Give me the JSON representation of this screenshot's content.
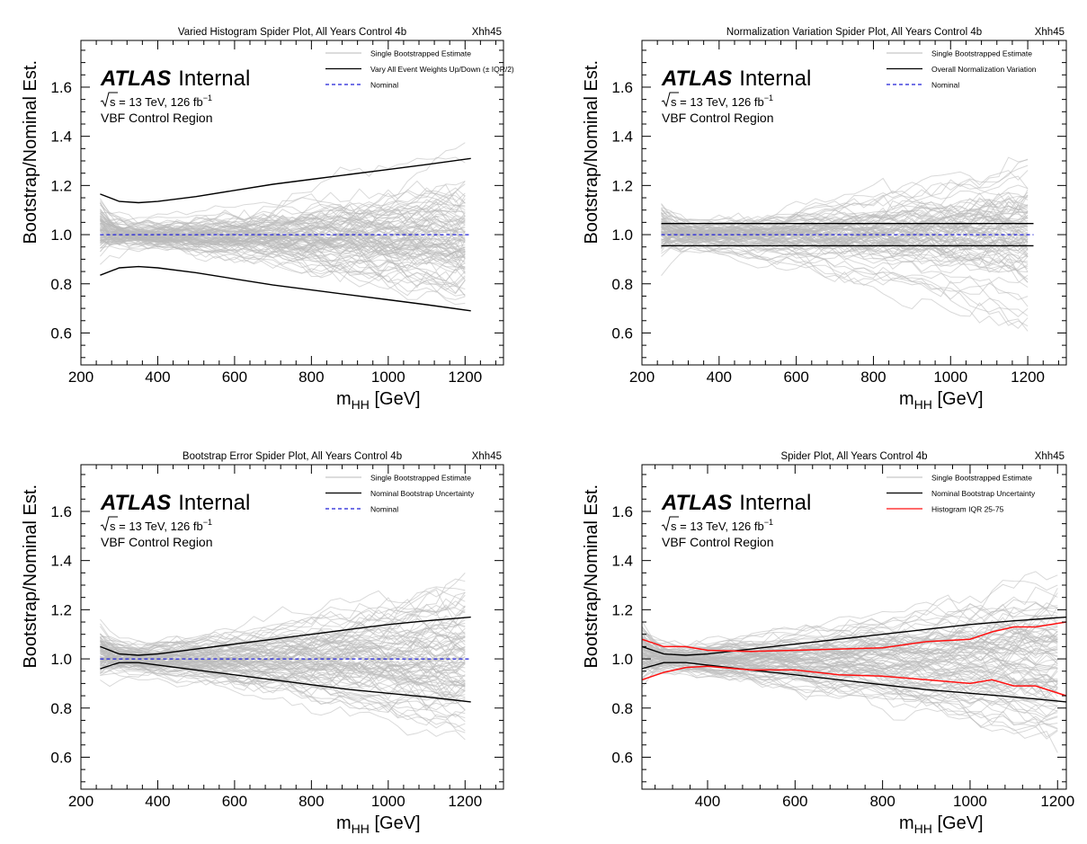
{
  "figure": {
    "atlas_label": "ATLAS",
    "atlas_status": "Internal",
    "sqrt_s": "s",
    "energy_text": " = 13 TeV, 126 fb",
    "lumi_exponent": "−1",
    "region": "VBF Control Region"
  },
  "colors": {
    "bootstrap": "#b9b9b9",
    "variation": "#000000",
    "nominal": "#1f1fd8",
    "iqr": "#ff1010"
  },
  "chart_data": [
    {
      "type": "line",
      "title": "Varied Histogram Spider Plot, All Years Control 4b",
      "tag": "Xhh45",
      "xlabel": "m",
      "xlabel_sub": "HH",
      "xlabel_unit": " [GeV]",
      "ylabel": "Bootstrap/Nominal Est.",
      "xlim": [
        200,
        1300
      ],
      "ylim": [
        0.47,
        1.79
      ],
      "xticks": [
        200,
        400,
        600,
        800,
        1000,
        1200
      ],
      "yticks": [
        0.6,
        0.8,
        1.0,
        1.2,
        1.4,
        1.6
      ],
      "legend_position": "top-right",
      "legend": [
        {
          "label": "Single Bootstrapped Estimate",
          "style": "bootstrap"
        },
        {
          "label": "Vary All Event Weights Up/Down (± IQR/2)",
          "style": "variation"
        },
        {
          "label": "Nominal",
          "style": "nominal"
        }
      ],
      "series": [
        {
          "style": "variation",
          "x": [
            250,
            300,
            350,
            400,
            500,
            600,
            700,
            800,
            900,
            1000,
            1100,
            1215
          ],
          "y": [
            1.165,
            1.135,
            1.13,
            1.135,
            1.155,
            1.18,
            1.205,
            1.225,
            1.245,
            1.265,
            1.285,
            1.31
          ]
        },
        {
          "style": "variation",
          "x": [
            250,
            300,
            350,
            400,
            500,
            600,
            700,
            800,
            900,
            1000,
            1100,
            1215
          ],
          "y": [
            0.835,
            0.865,
            0.87,
            0.865,
            0.845,
            0.82,
            0.795,
            0.775,
            0.755,
            0.735,
            0.715,
            0.69
          ]
        },
        {
          "style": "nominal",
          "x": [
            250,
            1215
          ],
          "y": [
            1.0,
            1.0
          ]
        }
      ]
    },
    {
      "type": "line",
      "title": "Normalization Variation Spider Plot, All Years Control 4b",
      "tag": "Xhh45",
      "xlabel": "m",
      "xlabel_sub": "HH",
      "xlabel_unit": " [GeV]",
      "ylabel": "Bootstrap/Nominal Est.",
      "xlim": [
        200,
        1300
      ],
      "ylim": [
        0.47,
        1.79
      ],
      "xticks": [
        200,
        400,
        600,
        800,
        1000,
        1200
      ],
      "yticks": [
        0.6,
        0.8,
        1.0,
        1.2,
        1.4,
        1.6
      ],
      "legend_position": "top-right",
      "legend": [
        {
          "label": "Single Bootstrapped Estimate",
          "style": "bootstrap"
        },
        {
          "label": "Overall Normalization Variation",
          "style": "variation"
        },
        {
          "label": "Nominal",
          "style": "nominal"
        }
      ],
      "series": [
        {
          "style": "variation",
          "x": [
            250,
            1215
          ],
          "y": [
            1.045,
            1.045
          ]
        },
        {
          "style": "variation",
          "x": [
            250,
            1215
          ],
          "y": [
            0.955,
            0.955
          ]
        },
        {
          "style": "nominal",
          "x": [
            250,
            1215
          ],
          "y": [
            1.0,
            1.0
          ]
        }
      ]
    },
    {
      "type": "line",
      "title": "Bootstrap Error Spider Plot, All Years Control 4b",
      "tag": "Xhh45",
      "xlabel": "m",
      "xlabel_sub": "HH",
      "xlabel_unit": " [GeV]",
      "ylabel": "Bootstrap/Nominal Est.",
      "xlim": [
        200,
        1300
      ],
      "ylim": [
        0.47,
        1.79
      ],
      "xticks": [
        200,
        400,
        600,
        800,
        1000,
        1200
      ],
      "yticks": [
        0.6,
        0.8,
        1.0,
        1.2,
        1.4,
        1.6
      ],
      "legend_position": "top-right",
      "legend": [
        {
          "label": "Single Bootstrapped Estimate",
          "style": "bootstrap"
        },
        {
          "label": "Nominal Bootstrap Uncertainty",
          "style": "variation"
        },
        {
          "label": "Nominal",
          "style": "nominal"
        }
      ],
      "series": [
        {
          "style": "variation",
          "x": [
            250,
            300,
            350,
            400,
            500,
            600,
            700,
            800,
            900,
            1000,
            1100,
            1215
          ],
          "y": [
            1.05,
            1.02,
            1.015,
            1.02,
            1.04,
            1.06,
            1.08,
            1.1,
            1.12,
            1.14,
            1.155,
            1.17
          ]
        },
        {
          "style": "variation",
          "x": [
            250,
            300,
            350,
            400,
            500,
            600,
            700,
            800,
            900,
            1000,
            1100,
            1215
          ],
          "y": [
            0.96,
            0.985,
            0.985,
            0.975,
            0.955,
            0.935,
            0.915,
            0.895,
            0.875,
            0.86,
            0.845,
            0.825
          ]
        },
        {
          "style": "nominal",
          "x": [
            250,
            1215
          ],
          "y": [
            1.0,
            1.0
          ]
        }
      ]
    },
    {
      "type": "line",
      "title": "Spider Plot, All Years Control 4b",
      "tag": "Xhh45",
      "xlabel": "m",
      "xlabel_sub": "HH",
      "xlabel_unit": " [GeV]",
      "ylabel": "Bootstrap/Nominal Est.",
      "xlim": [
        250,
        1220
      ],
      "ylim": [
        0.47,
        1.79
      ],
      "xticks": [
        400,
        600,
        800,
        1000,
        1200
      ],
      "yticks": [
        0.6,
        0.8,
        1.0,
        1.2,
        1.4,
        1.6
      ],
      "legend_position": "top-right",
      "legend": [
        {
          "label": "Single Bootstrapped Estimate",
          "style": "bootstrap"
        },
        {
          "label": "Nominal Bootstrap Uncertainty",
          "style": "variation"
        },
        {
          "label": "Histogram IQR 25-75",
          "style": "iqr"
        }
      ],
      "series": [
        {
          "style": "variation",
          "x": [
            250,
            300,
            350,
            400,
            500,
            600,
            700,
            800,
            900,
            1000,
            1100,
            1220
          ],
          "y": [
            1.05,
            1.02,
            1.015,
            1.02,
            1.04,
            1.06,
            1.08,
            1.1,
            1.12,
            1.14,
            1.155,
            1.17
          ]
        },
        {
          "style": "variation",
          "x": [
            250,
            300,
            350,
            400,
            500,
            600,
            700,
            800,
            900,
            1000,
            1100,
            1220
          ],
          "y": [
            0.96,
            0.985,
            0.985,
            0.975,
            0.955,
            0.935,
            0.915,
            0.895,
            0.875,
            0.86,
            0.845,
            0.825
          ]
        },
        {
          "style": "iqr",
          "x": [
            250,
            300,
            350,
            400,
            500,
            600,
            700,
            800,
            900,
            1000,
            1050,
            1100,
            1150,
            1220
          ],
          "y": [
            1.08,
            1.05,
            1.05,
            1.035,
            1.03,
            1.035,
            1.04,
            1.045,
            1.07,
            1.08,
            1.11,
            1.13,
            1.13,
            1.15
          ]
        },
        {
          "style": "iqr",
          "x": [
            250,
            300,
            350,
            400,
            500,
            600,
            700,
            800,
            900,
            1000,
            1050,
            1100,
            1150,
            1220
          ],
          "y": [
            0.915,
            0.945,
            0.965,
            0.97,
            0.955,
            0.955,
            0.935,
            0.93,
            0.915,
            0.9,
            0.915,
            0.89,
            0.89,
            0.85
          ]
        }
      ]
    }
  ]
}
